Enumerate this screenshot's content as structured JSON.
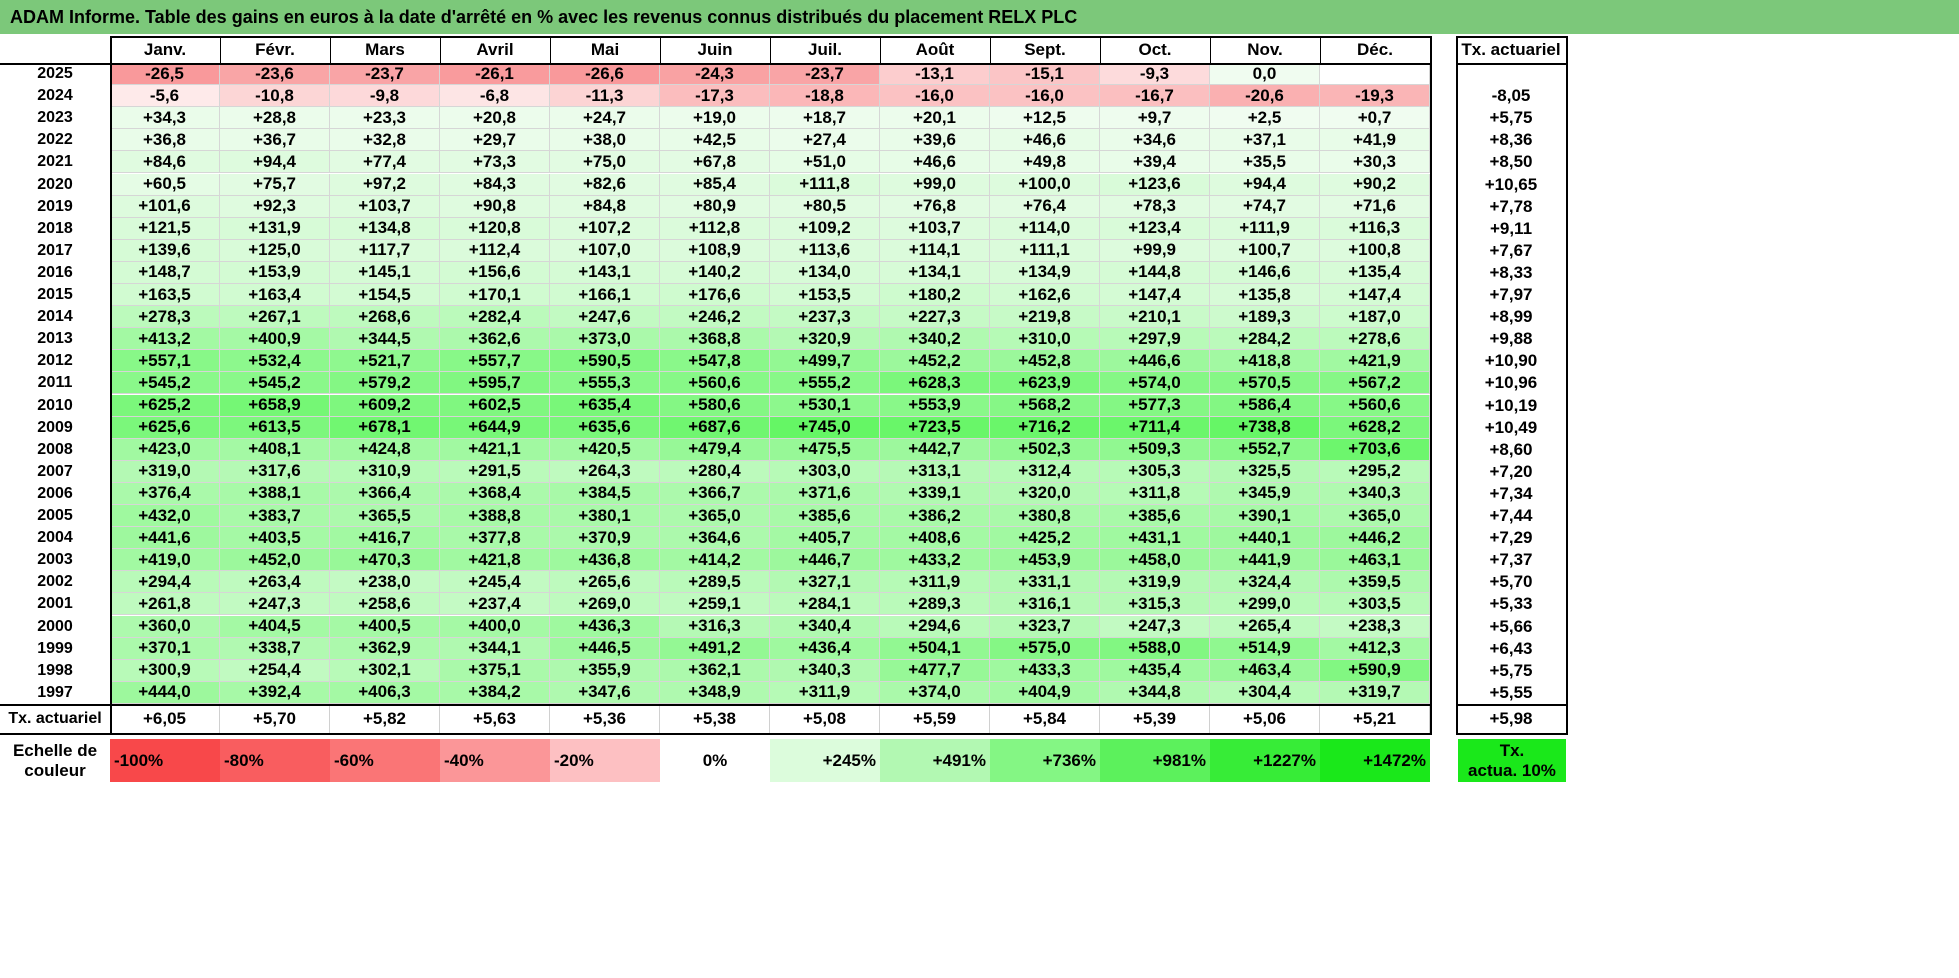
{
  "title": "ADAM Informe. Table des gains en euros à la date d'arrêté en % avec les revenus connus distribués du placement RELX PLC",
  "months": [
    "Janv.",
    "Févr.",
    "Mars",
    "Avril",
    "Mai",
    "Juin",
    "Juil.",
    "Août",
    "Sept.",
    "Oct.",
    "Nov.",
    "Déc."
  ],
  "rate_header": "Tx. actuariel",
  "rows": [
    {
      "year": "2025",
      "values": [
        "-26,5",
        "-23,6",
        "-23,7",
        "-26,1",
        "-26,6",
        "-24,3",
        "-23,7",
        "-13,1",
        "-15,1",
        "-9,3",
        "0,0",
        ""
      ],
      "rate": ""
    },
    {
      "year": "2024",
      "values": [
        "-5,6",
        "-10,8",
        "-9,8",
        "-6,8",
        "-11,3",
        "-17,3",
        "-18,8",
        "-16,0",
        "-16,0",
        "-16,7",
        "-20,6",
        "-19,3"
      ],
      "rate": "-8,05"
    },
    {
      "year": "2023",
      "values": [
        "+34,3",
        "+28,8",
        "+23,3",
        "+20,8",
        "+24,7",
        "+19,0",
        "+18,7",
        "+20,1",
        "+12,5",
        "+9,7",
        "+2,5",
        "+0,7"
      ],
      "rate": "+5,75"
    },
    {
      "year": "2022",
      "values": [
        "+36,8",
        "+36,7",
        "+32,8",
        "+29,7",
        "+38,0",
        "+42,5",
        "+27,4",
        "+39,6",
        "+46,6",
        "+34,6",
        "+37,1",
        "+41,9"
      ],
      "rate": "+8,36"
    },
    {
      "year": "2021",
      "values": [
        "+84,6",
        "+94,4",
        "+77,4",
        "+73,3",
        "+75,0",
        "+67,8",
        "+51,0",
        "+46,6",
        "+49,8",
        "+39,4",
        "+35,5",
        "+30,3"
      ],
      "rate": "+8,50"
    },
    {
      "year": "2020",
      "values": [
        "+60,5",
        "+75,7",
        "+97,2",
        "+84,3",
        "+82,6",
        "+85,4",
        "+111,8",
        "+99,0",
        "+100,0",
        "+123,6",
        "+94,4",
        "+90,2"
      ],
      "rate": "+10,65"
    },
    {
      "year": "2019",
      "values": [
        "+101,6",
        "+92,3",
        "+103,7",
        "+90,8",
        "+84,8",
        "+80,9",
        "+80,5",
        "+76,8",
        "+76,4",
        "+78,3",
        "+74,7",
        "+71,6"
      ],
      "rate": "+7,78"
    },
    {
      "year": "2018",
      "values": [
        "+121,5",
        "+131,9",
        "+134,8",
        "+120,8",
        "+107,2",
        "+112,8",
        "+109,2",
        "+103,7",
        "+114,0",
        "+123,4",
        "+111,9",
        "+116,3"
      ],
      "rate": "+9,11"
    },
    {
      "year": "2017",
      "values": [
        "+139,6",
        "+125,0",
        "+117,7",
        "+112,4",
        "+107,0",
        "+108,9",
        "+113,6",
        "+114,1",
        "+111,1",
        "+99,9",
        "+100,7",
        "+100,8"
      ],
      "rate": "+7,67"
    },
    {
      "year": "2016",
      "values": [
        "+148,7",
        "+153,9",
        "+145,1",
        "+156,6",
        "+143,1",
        "+140,2",
        "+134,0",
        "+134,1",
        "+134,9",
        "+144,8",
        "+146,6",
        "+135,4"
      ],
      "rate": "+8,33"
    },
    {
      "year": "2015",
      "values": [
        "+163,5",
        "+163,4",
        "+154,5",
        "+170,1",
        "+166,1",
        "+176,6",
        "+153,5",
        "+180,2",
        "+162,6",
        "+147,4",
        "+135,8",
        "+147,4"
      ],
      "rate": "+7,97"
    },
    {
      "year": "2014",
      "values": [
        "+278,3",
        "+267,1",
        "+268,6",
        "+282,4",
        "+247,6",
        "+246,2",
        "+237,3",
        "+227,3",
        "+219,8",
        "+210,1",
        "+189,3",
        "+187,0"
      ],
      "rate": "+8,99"
    },
    {
      "year": "2013",
      "values": [
        "+413,2",
        "+400,9",
        "+344,5",
        "+362,6",
        "+373,0",
        "+368,8",
        "+320,9",
        "+340,2",
        "+310,0",
        "+297,9",
        "+284,2",
        "+278,6"
      ],
      "rate": "+9,88"
    },
    {
      "year": "2012",
      "values": [
        "+557,1",
        "+532,4",
        "+521,7",
        "+557,7",
        "+590,5",
        "+547,8",
        "+499,7",
        "+452,2",
        "+452,8",
        "+446,6",
        "+418,8",
        "+421,9"
      ],
      "rate": "+10,90"
    },
    {
      "year": "2011",
      "values": [
        "+545,2",
        "+545,2",
        "+579,2",
        "+595,7",
        "+555,3",
        "+560,6",
        "+555,2",
        "+628,3",
        "+623,9",
        "+574,0",
        "+570,5",
        "+567,2"
      ],
      "rate": "+10,96"
    },
    {
      "year": "2010",
      "values": [
        "+625,2",
        "+658,9",
        "+609,2",
        "+602,5",
        "+635,4",
        "+580,6",
        "+530,1",
        "+553,9",
        "+568,2",
        "+577,3",
        "+586,4",
        "+560,6"
      ],
      "rate": "+10,19"
    },
    {
      "year": "2009",
      "values": [
        "+625,6",
        "+613,5",
        "+678,1",
        "+644,9",
        "+635,6",
        "+687,6",
        "+745,0",
        "+723,5",
        "+716,2",
        "+711,4",
        "+738,8",
        "+628,2"
      ],
      "rate": "+10,49"
    },
    {
      "year": "2008",
      "values": [
        "+423,0",
        "+408,1",
        "+424,8",
        "+421,1",
        "+420,5",
        "+479,4",
        "+475,5",
        "+442,7",
        "+502,3",
        "+509,3",
        "+552,7",
        "+703,6"
      ],
      "rate": "+8,60"
    },
    {
      "year": "2007",
      "values": [
        "+319,0",
        "+317,6",
        "+310,9",
        "+291,5",
        "+264,3",
        "+280,4",
        "+303,0",
        "+313,1",
        "+312,4",
        "+305,3",
        "+325,5",
        "+295,2"
      ],
      "rate": "+7,20"
    },
    {
      "year": "2006",
      "values": [
        "+376,4",
        "+388,1",
        "+366,4",
        "+368,4",
        "+384,5",
        "+366,7",
        "+371,6",
        "+339,1",
        "+320,0",
        "+311,8",
        "+345,9",
        "+340,3"
      ],
      "rate": "+7,34"
    },
    {
      "year": "2005",
      "values": [
        "+432,0",
        "+383,7",
        "+365,5",
        "+388,8",
        "+380,1",
        "+365,0",
        "+385,6",
        "+386,2",
        "+380,8",
        "+385,6",
        "+390,1",
        "+365,0"
      ],
      "rate": "+7,44"
    },
    {
      "year": "2004",
      "values": [
        "+441,6",
        "+403,5",
        "+416,7",
        "+377,8",
        "+370,9",
        "+364,6",
        "+405,7",
        "+408,6",
        "+425,2",
        "+431,1",
        "+440,1",
        "+446,2"
      ],
      "rate": "+7,29"
    },
    {
      "year": "2003",
      "values": [
        "+419,0",
        "+452,0",
        "+470,3",
        "+421,8",
        "+436,8",
        "+414,2",
        "+446,7",
        "+433,2",
        "+453,9",
        "+458,0",
        "+441,9",
        "+463,1"
      ],
      "rate": "+7,37"
    },
    {
      "year": "2002",
      "values": [
        "+294,4",
        "+263,4",
        "+238,0",
        "+245,4",
        "+265,6",
        "+289,5",
        "+327,1",
        "+311,9",
        "+331,1",
        "+319,9",
        "+324,4",
        "+359,5"
      ],
      "rate": "+5,70"
    },
    {
      "year": "2001",
      "values": [
        "+261,8",
        "+247,3",
        "+258,6",
        "+237,4",
        "+269,0",
        "+259,1",
        "+284,1",
        "+289,3",
        "+316,1",
        "+315,3",
        "+299,0",
        "+303,5"
      ],
      "rate": "+5,33"
    },
    {
      "year": "2000",
      "values": [
        "+360,0",
        "+404,5",
        "+400,5",
        "+400,0",
        "+436,3",
        "+316,3",
        "+340,4",
        "+294,6",
        "+323,7",
        "+247,3",
        "+265,4",
        "+238,3"
      ],
      "rate": "+5,66"
    },
    {
      "year": "1999",
      "values": [
        "+370,1",
        "+338,7",
        "+362,9",
        "+344,1",
        "+446,5",
        "+491,2",
        "+436,4",
        "+504,1",
        "+575,0",
        "+588,0",
        "+514,9",
        "+412,3"
      ],
      "rate": "+6,43"
    },
    {
      "year": "1998",
      "values": [
        "+300,9",
        "+254,4",
        "+302,1",
        "+375,1",
        "+355,9",
        "+362,1",
        "+340,3",
        "+477,7",
        "+433,3",
        "+435,4",
        "+463,4",
        "+590,9"
      ],
      "rate": "+5,75"
    },
    {
      "year": "1997",
      "values": [
        "+444,0",
        "+392,4",
        "+406,3",
        "+384,2",
        "+347,6",
        "+348,9",
        "+311,9",
        "+374,0",
        "+404,9",
        "+344,8",
        "+304,4",
        "+319,7"
      ],
      "rate": "+5,55"
    }
  ],
  "footer": {
    "label": "Tx. actuariel",
    "values": [
      "+6,05",
      "+5,70",
      "+5,82",
      "+5,63",
      "+5,36",
      "+5,38",
      "+5,08",
      "+5,59",
      "+5,84",
      "+5,39",
      "+5,06",
      "+5,21"
    ],
    "rate": "+5,98"
  },
  "legend": {
    "label_line1": "Echelle de",
    "label_line2": "couleur",
    "steps": [
      {
        "text": "-100%",
        "color": "#f8484a",
        "align": "left"
      },
      {
        "text": "-80%",
        "color": "#f95d5f",
        "align": "left"
      },
      {
        "text": "-60%",
        "color": "#fa7576",
        "align": "left"
      },
      {
        "text": "-40%",
        "color": "#fb9698",
        "align": "left"
      },
      {
        "text": "-20%",
        "color": "#fdc0c2",
        "align": "left"
      },
      {
        "text": "0%",
        "color": "#ffffff",
        "align": "center"
      },
      {
        "text": "+245%",
        "color": "#dcfcdc",
        "align": "right"
      },
      {
        "text": "+491%",
        "color": "#b2f8b2",
        "align": "right"
      },
      {
        "text": "+736%",
        "color": "#84f684",
        "align": "right"
      },
      {
        "text": "+981%",
        "color": "#5cf15c",
        "align": "right"
      },
      {
        "text": "+1227%",
        "color": "#37ec37",
        "align": "right"
      },
      {
        "text": "+1472%",
        "color": "#1ae81a",
        "align": "right"
      }
    ],
    "rate_line1": "Tx.",
    "rate_line2": "actua. 10%",
    "rate_color": "#1ae81a"
  }
}
